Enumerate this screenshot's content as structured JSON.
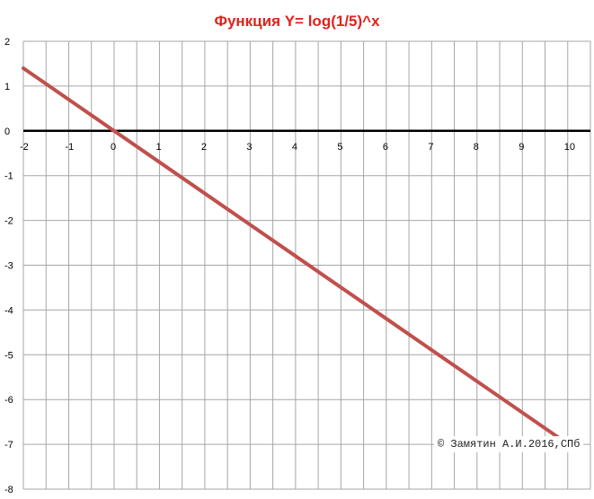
{
  "chart_data": {
    "type": "line",
    "title": "Функция Y= log(1/5)^x",
    "xlabel": "",
    "ylabel": "",
    "xlim": [
      -2,
      10.5
    ],
    "ylim": [
      -8,
      2
    ],
    "x_ticks": [
      -2,
      -1,
      0,
      1,
      2,
      3,
      4,
      5,
      6,
      7,
      8,
      9,
      10
    ],
    "y_ticks": [
      2,
      1,
      0,
      -1,
      -2,
      -3,
      -4,
      -5,
      -6,
      -7,
      -8
    ],
    "grid": true,
    "x_grid_step": 0.5,
    "y_grid_step": 1,
    "series": [
      {
        "color": "#c0504d",
        "x": [
          -2,
          0,
          2,
          4,
          6,
          8,
          10,
          10.2
        ],
        "y": [
          1.398,
          0,
          -1.398,
          -2.796,
          -4.194,
          -5.592,
          -6.99,
          -7.13
        ]
      }
    ],
    "annotation": "© Замятин А.И.2016,СПб",
    "colors": {
      "title": "#e3211c",
      "axis": "#000000",
      "grid": "#a6a6a6",
      "line": "#c0504d"
    }
  }
}
